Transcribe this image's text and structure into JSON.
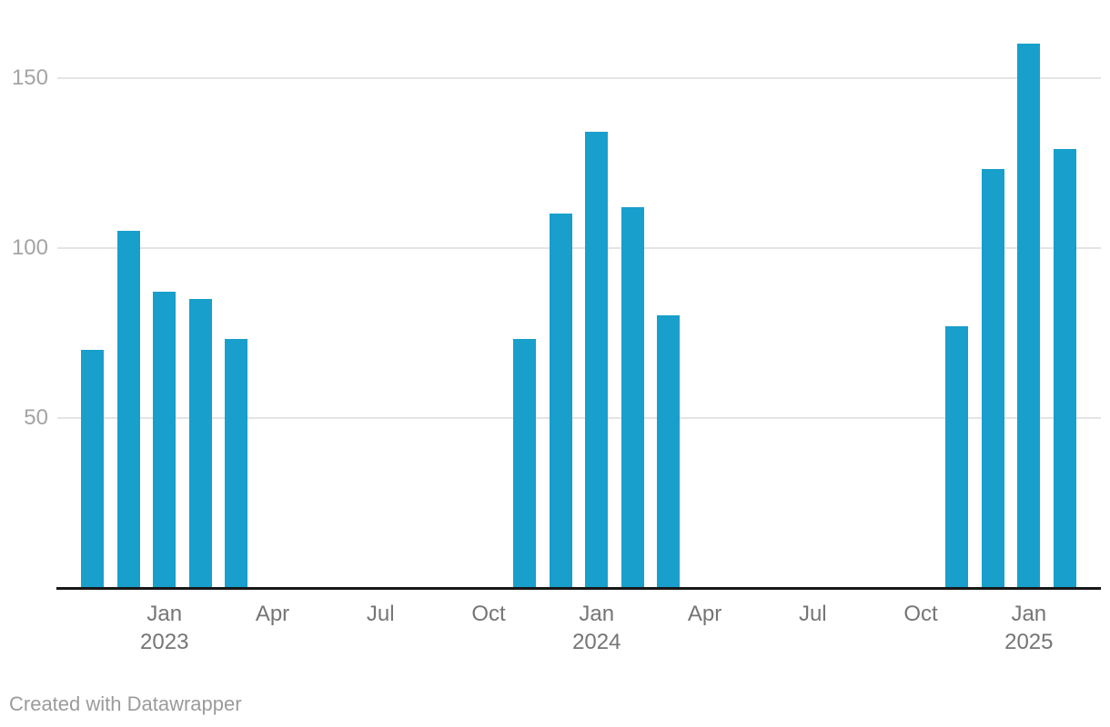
{
  "chart_data": {
    "type": "bar",
    "title": "",
    "xlabel": "",
    "ylabel": "",
    "x_domain": [
      "Oct 2022",
      "Mar 2025"
    ],
    "ylim": [
      0,
      170
    ],
    "grid": true,
    "legend": "none",
    "y_ticks": [
      50,
      100,
      150
    ],
    "x_ticks": [
      {
        "month": "Jan",
        "year": "2023",
        "index": 2
      },
      {
        "month": "Apr",
        "year": "",
        "index": 5
      },
      {
        "month": "Jul",
        "year": "",
        "index": 8
      },
      {
        "month": "Oct",
        "year": "",
        "index": 11
      },
      {
        "month": "Jan",
        "year": "2024",
        "index": 14
      },
      {
        "month": "Apr",
        "year": "",
        "index": 17
      },
      {
        "month": "Jul",
        "year": "",
        "index": 20
      },
      {
        "month": "Oct",
        "year": "",
        "index": 23
      },
      {
        "month": "Jan",
        "year": "2025",
        "index": 26
      }
    ],
    "bars": [
      {
        "label": "Nov 2022",
        "index": 0,
        "value": 70
      },
      {
        "label": "Dec 2022",
        "index": 1,
        "value": 105
      },
      {
        "label": "Jan 2023",
        "index": 2,
        "value": 87
      },
      {
        "label": "Feb 2023",
        "index": 3,
        "value": 85
      },
      {
        "label": "Mar 2023",
        "index": 4,
        "value": 73
      },
      {
        "label": "Nov 2023",
        "index": 12,
        "value": 73
      },
      {
        "label": "Dec 2023",
        "index": 13,
        "value": 110
      },
      {
        "label": "Jan 2024",
        "index": 14,
        "value": 134
      },
      {
        "label": "Feb 2024",
        "index": 15,
        "value": 112
      },
      {
        "label": "Mar 2024",
        "index": 16,
        "value": 80
      },
      {
        "label": "Nov 2024",
        "index": 24,
        "value": 77
      },
      {
        "label": "Dec 2024",
        "index": 25,
        "value": 123
      },
      {
        "label": "Jan 2025",
        "index": 26,
        "value": 160
      },
      {
        "label": "Feb 2025",
        "index": 27,
        "value": 129
      }
    ],
    "colors": {
      "bar": "#189fcc",
      "gridline": "#e4e4e4",
      "axis_line": "#181818",
      "y_tick_label": "#a4a4a4",
      "x_tick_label": "#757575",
      "attribution": "#9b9b9b"
    }
  },
  "footer": {
    "attribution": "Created with Datawrapper"
  }
}
